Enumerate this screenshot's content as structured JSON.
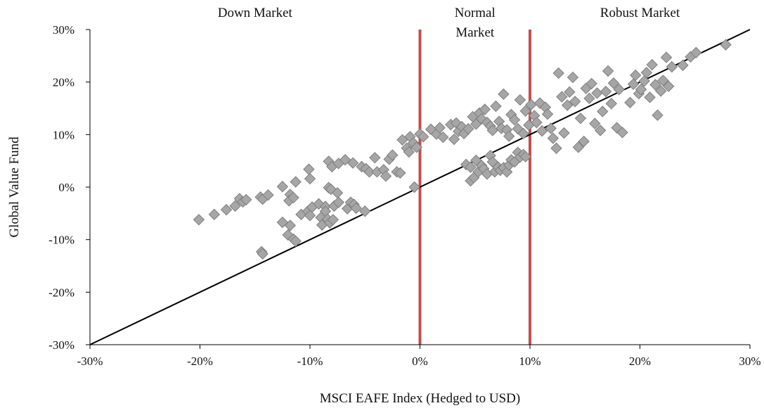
{
  "chart_data": {
    "type": "scatter",
    "xlabel": "MSCI EAFE Index (Hedged to USD)",
    "ylabel": "Global Value Fund",
    "xlim": [
      -30,
      30
    ],
    "ylim": [
      -30,
      30
    ],
    "x_ticks": [
      "-30%",
      "-20%",
      "-10%",
      "0%",
      "10%",
      "20%",
      "30%"
    ],
    "y_ticks": [
      "30%",
      "20%",
      "10%",
      "0%",
      "-10%",
      "-20%",
      "-30%"
    ],
    "regions": [
      {
        "label_lines": [
          "Down Market"
        ],
        "x_center": -15
      },
      {
        "label_lines": [
          "Normal",
          "Market"
        ],
        "x_center": 5
      },
      {
        "label_lines": [
          "Robust Market"
        ],
        "x_center": 20
      }
    ],
    "boundaries": [
      0,
      10
    ],
    "reference_line": {
      "from": [
        -30,
        -30
      ],
      "to": [
        30,
        30
      ]
    },
    "colors": {
      "points": "#a6a6a6",
      "point_stroke": "#7f7f7f",
      "boundary": "#c0504d",
      "line": "#000000",
      "axis": "#000000"
    },
    "points": [
      [
        -20.1,
        -6.2
      ],
      [
        -18.7,
        -5.2
      ],
      [
        -17.6,
        -4.3
      ],
      [
        -16.8,
        -3.6
      ],
      [
        -16.4,
        -2.2
      ],
      [
        -16.1,
        -2.8
      ],
      [
        -15.8,
        -2.4
      ],
      [
        -14.5,
        -1.9
      ],
      [
        -14.3,
        -2.3
      ],
      [
        -13.8,
        -1.5
      ],
      [
        -14.4,
        -12.3
      ],
      [
        -14.3,
        -12.7
      ],
      [
        -12.5,
        0.1
      ],
      [
        -11.8,
        -1.4
      ],
      [
        -11.9,
        -2.6
      ],
      [
        -11.3,
        1.0
      ],
      [
        -11.5,
        -2.0
      ],
      [
        -12.5,
        -6.7
      ],
      [
        -12.0,
        -9.1
      ],
      [
        -11.8,
        -7.3
      ],
      [
        -11.5,
        -9.9
      ],
      [
        -11.3,
        -10.3
      ],
      [
        -10.8,
        -5.2
      ],
      [
        -10.2,
        -4.6
      ],
      [
        -10.0,
        -5.4
      ],
      [
        -9.8,
        -3.8
      ],
      [
        -10.1,
        3.4
      ],
      [
        -10.0,
        1.6
      ],
      [
        -9.2,
        -3.2
      ],
      [
        -9.0,
        -5.8
      ],
      [
        -8.9,
        -7.2
      ],
      [
        -8.6,
        -3.7
      ],
      [
        -8.6,
        -4.6
      ],
      [
        -8.4,
        -6.1
      ],
      [
        -8.2,
        -6.8
      ],
      [
        -7.9,
        -6.2
      ],
      [
        -8.3,
        -0.1
      ],
      [
        -8.1,
        -0.4
      ],
      [
        -8.3,
        4.9
      ],
      [
        -8.0,
        3.9
      ],
      [
        -7.4,
        4.5
      ],
      [
        -7.5,
        -1.1
      ],
      [
        -7.8,
        -3.6
      ],
      [
        -7.4,
        -2.9
      ],
      [
        -6.8,
        5.2
      ],
      [
        -6.6,
        -4.1
      ],
      [
        -6.3,
        -2.9
      ],
      [
        -6.1,
        4.6
      ],
      [
        -6.0,
        -3.3
      ],
      [
        -5.8,
        -4.0
      ],
      [
        -5.3,
        3.9
      ],
      [
        -5.0,
        -4.6
      ],
      [
        -4.9,
        3.5
      ],
      [
        -4.6,
        2.9
      ],
      [
        -4.1,
        5.6
      ],
      [
        -3.9,
        2.9
      ],
      [
        -3.3,
        3.3
      ],
      [
        -3.1,
        2.1
      ],
      [
        -2.8,
        5.3
      ],
      [
        -2.5,
        6.1
      ],
      [
        -2.1,
        2.9
      ],
      [
        -1.8,
        2.7
      ],
      [
        -1.6,
        9.0
      ],
      [
        -1.2,
        7.4
      ],
      [
        -1.0,
        6.7
      ],
      [
        -0.9,
        9.6
      ],
      [
        -0.6,
        8.4
      ],
      [
        -0.3,
        7.6
      ],
      [
        -0.5,
        0.0
      ],
      [
        0.0,
        10.1
      ],
      [
        0.3,
        9.6
      ],
      [
        1.0,
        11.0
      ],
      [
        1.5,
        10.1
      ],
      [
        1.8,
        11.3
      ],
      [
        2.1,
        9.5
      ],
      [
        2.8,
        11.9
      ],
      [
        3.1,
        9.1
      ],
      [
        3.3,
        12.2
      ],
      [
        3.5,
        10.6
      ],
      [
        3.8,
        11.5
      ],
      [
        4.0,
        10.2
      ],
      [
        4.4,
        11.1
      ],
      [
        4.2,
        4.3
      ],
      [
        4.6,
        3.8
      ],
      [
        4.6,
        1.2
      ],
      [
        4.9,
        1.8
      ],
      [
        5.1,
        5.1
      ],
      [
        5.3,
        2.9
      ],
      [
        5.6,
        4.1
      ],
      [
        5.8,
        3.5
      ],
      [
        6.1,
        2.5
      ],
      [
        6.4,
        6.0
      ],
      [
        6.6,
        4.8
      ],
      [
        6.8,
        2.9
      ],
      [
        7.1,
        3.8
      ],
      [
        7.3,
        3.2
      ],
      [
        7.6,
        3.7
      ],
      [
        7.9,
        2.9
      ],
      [
        8.1,
        4.2
      ],
      [
        8.3,
        5.2
      ],
      [
        8.6,
        4.8
      ],
      [
        8.9,
        6.6
      ],
      [
        9.1,
        5.7
      ],
      [
        9.4,
        6.2
      ],
      [
        9.6,
        5.8
      ],
      [
        4.8,
        13.4
      ],
      [
        5.1,
        12.0
      ],
      [
        5.4,
        14.1
      ],
      [
        5.6,
        13.0
      ],
      [
        5.9,
        14.8
      ],
      [
        6.1,
        12.3
      ],
      [
        6.4,
        11.6
      ],
      [
        6.6,
        10.8
      ],
      [
        6.9,
        15.4
      ],
      [
        7.2,
        12.5
      ],
      [
        7.4,
        11.2
      ],
      [
        7.6,
        17.7
      ],
      [
        7.9,
        10.9
      ],
      [
        8.1,
        9.7
      ],
      [
        8.3,
        13.8
      ],
      [
        8.6,
        12.8
      ],
      [
        8.9,
        11.1
      ],
      [
        9.1,
        16.6
      ],
      [
        9.4,
        10.2
      ],
      [
        9.6,
        14.5
      ],
      [
        9.9,
        11.8
      ],
      [
        10.1,
        15.7
      ],
      [
        10.4,
        13.6
      ],
      [
        10.6,
        12.3
      ],
      [
        10.9,
        16.0
      ],
      [
        11.1,
        10.7
      ],
      [
        11.4,
        15.2
      ],
      [
        11.6,
        13.9
      ],
      [
        11.9,
        11.2
      ],
      [
        12.1,
        9.3
      ],
      [
        12.4,
        7.4
      ],
      [
        12.6,
        21.7
      ],
      [
        12.9,
        17.2
      ],
      [
        13.1,
        10.3
      ],
      [
        13.4,
        15.6
      ],
      [
        13.6,
        18.1
      ],
      [
        13.9,
        20.9
      ],
      [
        14.1,
        16.3
      ],
      [
        14.4,
        7.6
      ],
      [
        14.6,
        13.1
      ],
      [
        14.9,
        8.7
      ],
      [
        15.1,
        18.8
      ],
      [
        15.4,
        16.9
      ],
      [
        15.6,
        19.7
      ],
      [
        15.9,
        12.1
      ],
      [
        16.1,
        17.9
      ],
      [
        16.4,
        10.8
      ],
      [
        16.6,
        14.4
      ],
      [
        16.9,
        18.2
      ],
      [
        17.1,
        22.1
      ],
      [
        17.4,
        15.9
      ],
      [
        17.6,
        19.8
      ],
      [
        17.9,
        11.3
      ],
      [
        18.1,
        18.6
      ],
      [
        18.4,
        10.4
      ],
      [
        19.1,
        16.1
      ],
      [
        19.4,
        19.6
      ],
      [
        19.6,
        21.3
      ],
      [
        19.9,
        17.8
      ],
      [
        20.1,
        18.6
      ],
      [
        20.4,
        20.2
      ],
      [
        20.6,
        21.8
      ],
      [
        20.9,
        17.1
      ],
      [
        21.1,
        23.3
      ],
      [
        21.4,
        19.5
      ],
      [
        21.6,
        13.7
      ],
      [
        21.9,
        18.3
      ],
      [
        22.1,
        20.3
      ],
      [
        22.4,
        24.7
      ],
      [
        22.6,
        19.2
      ],
      [
        22.9,
        22.9
      ],
      [
        23.9,
        23.2
      ],
      [
        24.6,
        24.8
      ],
      [
        25.1,
        25.6
      ],
      [
        27.8,
        27.1
      ]
    ]
  }
}
